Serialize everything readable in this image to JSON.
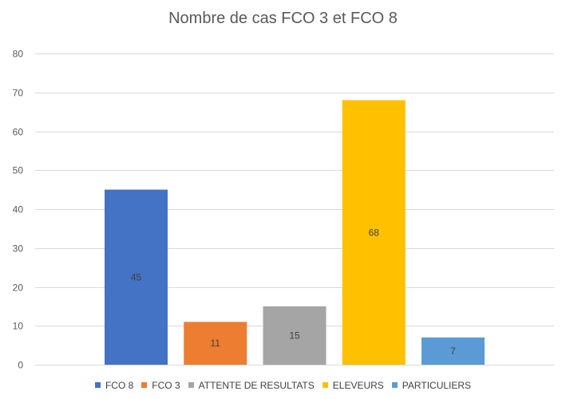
{
  "chart_data": {
    "type": "bar",
    "title": "Nombre de cas FCO 3 et FCO 8",
    "xlabel": "",
    "ylabel": "",
    "ylim": [
      0,
      80
    ],
    "yticks": [
      0,
      10,
      20,
      30,
      40,
      50,
      60,
      70,
      80
    ],
    "grid": true,
    "legend_position": "bottom",
    "series": [
      {
        "name": "FCO 8",
        "value": 45,
        "color": "#4472C4"
      },
      {
        "name": "FCO 3",
        "value": 11,
        "color": "#ED7D31"
      },
      {
        "name": "ATTENTE DE RESULTATS",
        "value": 15,
        "color": "#A5A5A5"
      },
      {
        "name": "ELEVEURS",
        "value": 68,
        "color": "#FFC000"
      },
      {
        "name": "PARTICULIERS",
        "value": 7,
        "color": "#5B9BD5"
      }
    ]
  }
}
